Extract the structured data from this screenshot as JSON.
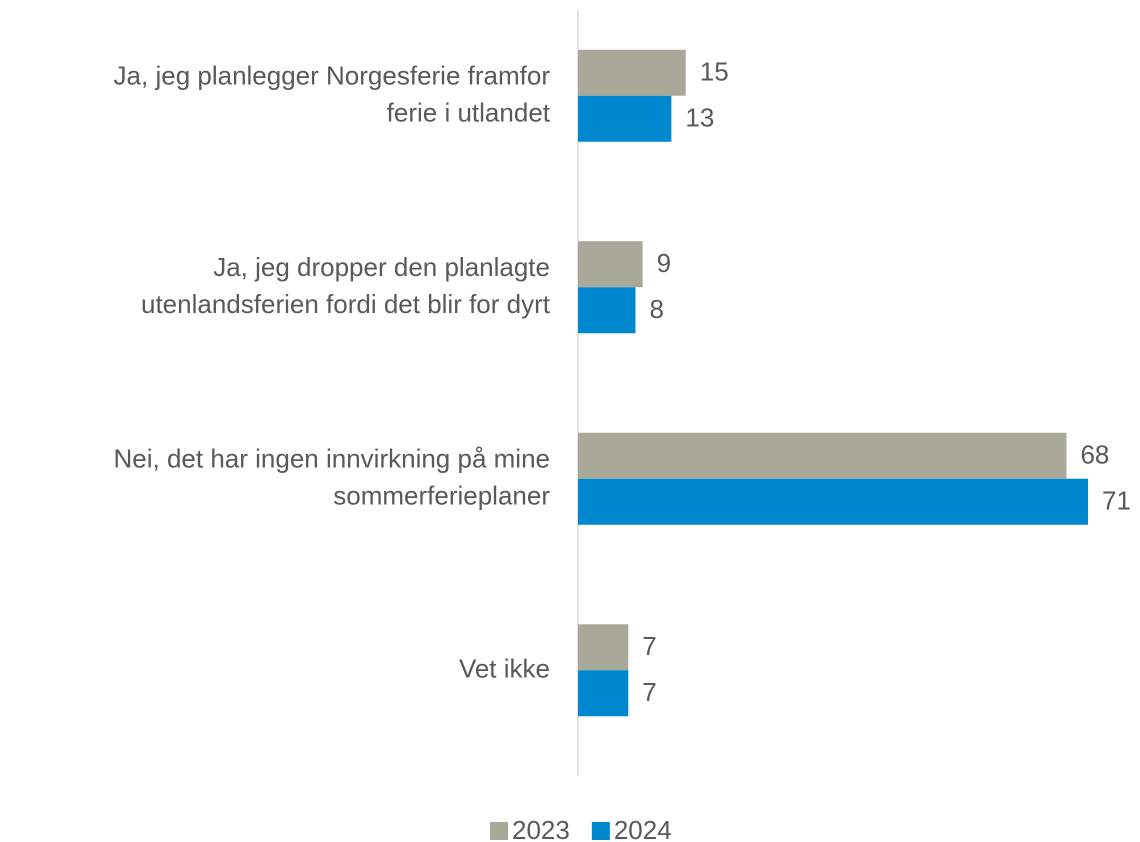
{
  "chart_data": {
    "type": "barh",
    "categories": [
      "Ja, jeg planlegger Norgesferie framfor\nferie i utlandet",
      "Ja, jeg dropper den planlagte\nutenlandsferien fordi det blir for dyrt",
      "Nei, det har ingen innvirkning på mine\nsommerferieplaner",
      "Vet ikke"
    ],
    "series": [
      {
        "name": "2023",
        "color": "#a9a99a",
        "values": [
          15,
          9,
          68,
          7
        ]
      },
      {
        "name": "2024",
        "color": "#0088cf",
        "values": [
          13,
          8,
          71,
          7
        ]
      }
    ],
    "legend": "bottom"
  }
}
